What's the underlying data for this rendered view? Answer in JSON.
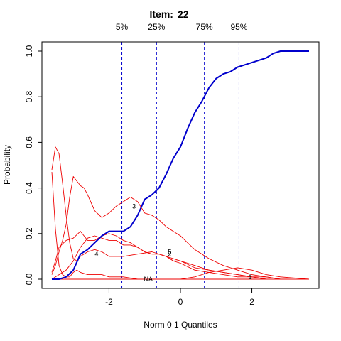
{
  "chart_data": {
    "type": "line",
    "title_prefix": "Item:",
    "title_number": "22",
    "xlabel": "Norm 0 1 Quantiles",
    "ylabel": "Probability",
    "xlim": [
      -3.6,
      3.6
    ],
    "ylim": [
      0,
      1
    ],
    "x_ticks": [
      -2,
      0,
      2
    ],
    "x_tick_labels": [
      "-2",
      "0",
      "2"
    ],
    "y_ticks": [
      0,
      0.2,
      0.4,
      0.6,
      0.8,
      1.0
    ],
    "y_tick_labels": [
      "0.0",
      "0.2",
      "0.4",
      "0.6",
      "0.8",
      "1.0"
    ],
    "quantiles": [
      {
        "label": "5%",
        "x": -1.64
      },
      {
        "label": "25%",
        "x": -0.67
      },
      {
        "label": "75%",
        "x": 0.67
      },
      {
        "label": "95%",
        "x": 1.64
      }
    ],
    "colors": {
      "correct": "#0000cc",
      "distractor": "#ee0000",
      "quantile": "#0000cc"
    },
    "series": [
      {
        "label": "",
        "role": "correct",
        "x": [
          -3.6,
          -3.4,
          -3.2,
          -3.0,
          -2.8,
          -2.6,
          -2.4,
          -2.2,
          -2.0,
          -1.8,
          -1.6,
          -1.4,
          -1.2,
          -1.0,
          -0.8,
          -0.6,
          -0.4,
          -0.2,
          0.0,
          0.2,
          0.4,
          0.6,
          0.8,
          1.0,
          1.2,
          1.4,
          1.6,
          1.8,
          2.0,
          2.2,
          2.4,
          2.6,
          2.8,
          3.0,
          3.2,
          3.4,
          3.6
        ],
        "y": [
          0.0,
          0.0,
          0.01,
          0.04,
          0.11,
          0.13,
          0.16,
          0.19,
          0.21,
          0.21,
          0.21,
          0.23,
          0.28,
          0.35,
          0.37,
          0.4,
          0.46,
          0.53,
          0.58,
          0.66,
          0.73,
          0.78,
          0.84,
          0.88,
          0.9,
          0.91,
          0.93,
          0.94,
          0.95,
          0.96,
          0.97,
          0.99,
          1.0,
          1.0,
          1.0,
          1.0,
          1.0
        ]
      },
      {
        "label": "1",
        "role": "distractor",
        "label_at": [
          1.95,
          0.01
        ],
        "x": [
          -3.6,
          -3.5,
          -3.4,
          -3.2,
          -3.0,
          -2.8,
          -2.6,
          -2.4,
          -2.2,
          -2.0,
          -1.8,
          -1.6,
          -1.4,
          -1.2,
          -1.0,
          -0.8,
          -0.6,
          -0.4,
          -0.2,
          0.0,
          0.4,
          0.8,
          1.2,
          1.6,
          2.0,
          2.4,
          3.6
        ],
        "y": [
          0.03,
          0.08,
          0.14,
          0.17,
          0.18,
          0.21,
          0.17,
          0.17,
          0.19,
          0.2,
          0.19,
          0.17,
          0.16,
          0.14,
          0.12,
          0.11,
          0.11,
          0.1,
          0.08,
          0.07,
          0.04,
          0.03,
          0.02,
          0.01,
          0.01,
          0.0,
          0.0
        ]
      },
      {
        "label": "2",
        "role": "distractor",
        "label_at": [
          -0.3,
          0.11
        ],
        "x": [
          -3.6,
          -3.4,
          -3.2,
          -3.0,
          -2.8,
          -2.6,
          -2.4,
          -2.2,
          -2.0,
          -1.8,
          -1.6,
          -1.4,
          -1.2,
          -1.0,
          -0.8,
          -0.6,
          -0.4,
          -0.2,
          0.0,
          0.4,
          0.8,
          1.2,
          1.6,
          2.0,
          2.4,
          2.8,
          3.6
        ],
        "y": [
          0.0,
          0.02,
          0.04,
          0.08,
          0.14,
          0.18,
          0.19,
          0.18,
          0.17,
          0.17,
          0.15,
          0.15,
          0.14,
          0.12,
          0.11,
          0.11,
          0.1,
          0.08,
          0.08,
          0.05,
          0.04,
          0.03,
          0.02,
          0.01,
          0.01,
          0.0,
          0.0
        ]
      },
      {
        "label": "3",
        "role": "distractor",
        "label_at": [
          -1.3,
          0.32
        ],
        "x": [
          -3.6,
          -3.5,
          -3.4,
          -3.3,
          -3.2,
          -3.1,
          -3.0,
          -2.9,
          -2.8,
          -2.7,
          -2.6,
          -2.4,
          -2.2,
          -2.0,
          -1.8,
          -1.6,
          -1.4,
          -1.2,
          -1.0,
          -0.8,
          -0.6,
          -0.4,
          -0.2,
          0.0,
          0.4,
          0.8,
          1.2,
          1.6,
          2.0,
          2.4,
          2.8,
          3.6
        ],
        "y": [
          0.02,
          0.06,
          0.12,
          0.17,
          0.24,
          0.36,
          0.45,
          0.43,
          0.41,
          0.4,
          0.37,
          0.3,
          0.27,
          0.29,
          0.32,
          0.34,
          0.36,
          0.34,
          0.29,
          0.28,
          0.26,
          0.23,
          0.21,
          0.19,
          0.13,
          0.09,
          0.06,
          0.04,
          0.02,
          0.01,
          0.0,
          0.0
        ]
      },
      {
        "label": "4",
        "role": "distractor",
        "label_at": [
          -2.35,
          0.11
        ],
        "x": [
          -3.6,
          -3.5,
          -3.4,
          -3.3,
          -3.2,
          -3.1,
          -3.0,
          -2.9,
          -2.8,
          -2.6,
          -2.4,
          -2.2,
          -2.0,
          -1.8,
          -1.6,
          -1.2,
          -0.8,
          -0.4,
          0.0,
          0.4,
          0.8,
          1.2,
          1.6,
          2.0,
          2.4,
          3.6
        ],
        "y": [
          0.48,
          0.58,
          0.55,
          0.42,
          0.28,
          0.16,
          0.09,
          0.08,
          0.1,
          0.12,
          0.13,
          0.12,
          0.1,
          0.1,
          0.1,
          0.11,
          0.12,
          0.1,
          0.08,
          0.06,
          0.04,
          0.03,
          0.02,
          0.01,
          0.0,
          0.0
        ]
      },
      {
        "label": "5",
        "role": "distractor",
        "label_at": [
          -0.3,
          0.12
        ],
        "x": [
          -3.6,
          -3.5,
          -3.4,
          -3.3,
          -3.2,
          -3.1,
          -3.0,
          -2.9,
          -2.8,
          -2.6,
          -2.4,
          -2.2,
          -2.0,
          -1.6,
          -1.2,
          -0.8,
          -0.4,
          0.0,
          0.4,
          0.8,
          1.2,
          1.6,
          2.0,
          2.4,
          2.8,
          3.6
        ],
        "y": [
          0.47,
          0.22,
          0.06,
          0.02,
          0.01,
          0.01,
          0.03,
          0.04,
          0.03,
          0.02,
          0.02,
          0.02,
          0.01,
          0.01,
          0.0,
          0.0,
          0.0,
          0.0,
          0.01,
          0.03,
          0.04,
          0.05,
          0.04,
          0.02,
          0.01,
          0.0
        ]
      },
      {
        "label": "NA",
        "role": "distractor",
        "label_at": [
          -0.9,
          0.0
        ],
        "x": [
          -3.6,
          -3.3,
          -3.0,
          -2.7,
          -2.4,
          -2.1,
          -1.8,
          -1.5,
          -1.2,
          -0.9,
          -0.6,
          -0.3,
          0.0,
          0.6,
          1.2,
          1.8,
          2.4,
          3.0,
          3.6
        ],
        "y": [
          0.0,
          0.0,
          0.0,
          0.0,
          0.0,
          0.0,
          0.0,
          0.0,
          0.0,
          0.0,
          0.0,
          0.0,
          0.0,
          0.0,
          0.0,
          0.0,
          0.0,
          0.0,
          0.0
        ]
      }
    ]
  }
}
